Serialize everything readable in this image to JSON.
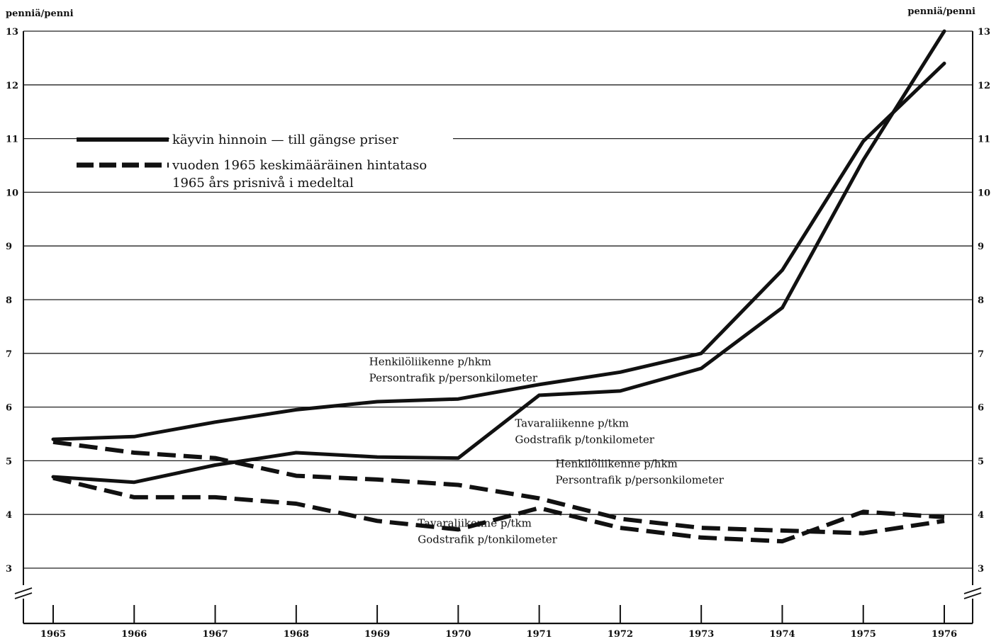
{
  "chart_data": {
    "type": "line",
    "y_unit_left": "penniä/penni",
    "y_unit_right": "penniä/penni",
    "ylim": [
      3,
      13
    ],
    "y_ticks": [
      3,
      4,
      5,
      6,
      7,
      8,
      9,
      10,
      11,
      12,
      13
    ],
    "y_tick_labels": [
      "3",
      "4",
      "5",
      "6",
      "7",
      "8",
      "9",
      "10",
      "11",
      "12",
      "13"
    ],
    "x_ticks": [
      1965,
      1966,
      1967,
      1968,
      1969,
      1970,
      1971,
      1972,
      1973,
      1974,
      1975,
      1976
    ],
    "x_tick_labels": [
      "1965",
      "1966",
      "1967",
      "1968",
      "1969",
      "1970",
      "1971",
      "1972",
      "1973",
      "1974",
      "1975",
      "1976"
    ],
    "grid": true,
    "legend": {
      "position": "top-left",
      "entries": [
        {
          "style": "solid",
          "lines": [
            "käyvin hinnoin — till gängse priser"
          ]
        },
        {
          "style": "dashed",
          "lines": [
            "vuoden 1965 keskimääräinen hintataso",
            "1965 års prisnivå i medeltal"
          ]
        }
      ]
    },
    "series": [
      {
        "style": "solid",
        "x": [
          1965,
          1966,
          1967,
          1968,
          1969,
          1970,
          1971,
          1972,
          1973,
          1974,
          1975,
          1976
        ],
        "values": [
          5.4,
          5.45,
          5.72,
          5.95,
          6.1,
          6.15,
          6.42,
          6.65,
          7.0,
          8.55,
          10.95,
          12.4
        ]
      },
      {
        "style": "solid",
        "x": [
          1965,
          1966,
          1967,
          1968,
          1969,
          1970,
          1971,
          1972,
          1973,
          1974,
          1975,
          1976
        ],
        "values": [
          4.7,
          4.6,
          4.92,
          5.15,
          5.07,
          5.05,
          6.22,
          6.3,
          6.72,
          7.85,
          10.6,
          13.0
        ]
      },
      {
        "style": "dashed",
        "x": [
          1965,
          1966,
          1967,
          1968,
          1969,
          1970,
          1971,
          1972,
          1973,
          1974,
          1975,
          1976
        ],
        "values": [
          5.35,
          5.15,
          5.05,
          4.72,
          4.65,
          4.55,
          4.3,
          3.92,
          3.75,
          3.7,
          3.65,
          3.88
        ]
      },
      {
        "style": "dashed",
        "x": [
          1965,
          1966,
          1967,
          1968,
          1969,
          1970,
          1971,
          1972,
          1973,
          1974,
          1975,
          1976
        ],
        "values": [
          4.68,
          4.32,
          4.32,
          4.2,
          3.88,
          3.72,
          4.12,
          3.75,
          3.57,
          3.5,
          4.05,
          3.95
        ]
      }
    ],
    "annotations": [
      {
        "lines": [
          "Henkilöliikenne p/hkm",
          "Persontrafik p/personkilometer"
        ],
        "x": 1968.9,
        "y": 6.78
      },
      {
        "lines": [
          "Tavaraliikenne p/tkm",
          "Godstrafik p/tonkilometer"
        ],
        "x": 1970.7,
        "y": 5.63
      },
      {
        "lines": [
          "Henkilöliikenne p/hkm",
          "Persontrafik p/personkilometer"
        ],
        "x": 1971.2,
        "y": 4.88
      },
      {
        "lines": [
          "Tavaraliikenne p/tkm",
          "Godstrafik p/tonkilometer"
        ],
        "x": 1969.5,
        "y": 3.77
      }
    ]
  }
}
